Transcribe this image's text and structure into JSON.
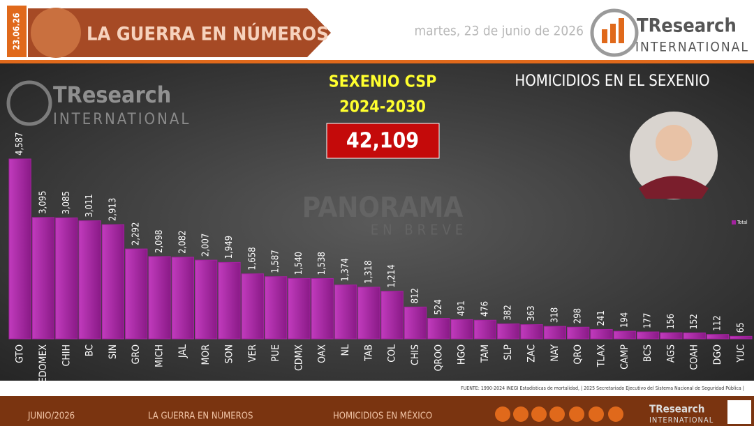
{
  "header": {
    "date_stamp": "23.06.26",
    "title": "LA GUERRA EN NÚMEROS",
    "date": "martes, 23 de junio de 2026",
    "logo_name": "TResearch",
    "logo_sub": "INTERNATIONAL"
  },
  "panel": {
    "period_title": "SEXENIO CSP",
    "period_years": "2024-2030",
    "total": "42,109",
    "heading": "HOMICIDIOS  EN  EL SEXENIO",
    "watermark_name": "PANORAMA",
    "watermark_sub": "EN BREVE"
  },
  "chart_data": {
    "type": "bar",
    "categories": [
      "GTO",
      "EDOMEX",
      "CHIH",
      "BC",
      "SIN",
      "GRO",
      "MICH",
      "JAL",
      "MOR",
      "SON",
      "VER",
      "PUE",
      "CDMX",
      "OAX",
      "NL",
      "TAB",
      "COL",
      "CHIS",
      "QROO",
      "HGO",
      "TAM",
      "SLP",
      "ZAC",
      "NAY",
      "QRO",
      "TLAX",
      "CAMP",
      "BCS",
      "AGS",
      "COAH",
      "DGO",
      "YUC"
    ],
    "series": [
      {
        "name": "Total",
        "color": "#a3229f",
        "values": [
          4587,
          3095,
          3085,
          3011,
          2913,
          2292,
          2098,
          2082,
          2007,
          1949,
          1658,
          1587,
          1540,
          1538,
          1374,
          1318,
          1214,
          812,
          524,
          491,
          476,
          382,
          363,
          318,
          298,
          241,
          194,
          177,
          156,
          152,
          112,
          65
        ],
        "value_labels": [
          "4,587",
          "3,095",
          "3,085",
          "3,011",
          "2,913",
          "2,292",
          "2,098",
          "2,082",
          "2,007",
          "1,949",
          "1,658",
          "1,587",
          "1,540",
          "1,538",
          "1,374",
          "1,318",
          "1,214",
          "812",
          "524",
          "491",
          "476",
          "382",
          "363",
          "318",
          "298",
          "241",
          "194",
          "177",
          "156",
          "152",
          "112",
          "65"
        ]
      }
    ],
    "legend": "right"
  },
  "source": "FUENTE: 1990-2024 INEGI Estadísticas de mortalidad, | 2025 Secretariado Ejecutivo del Sistema Nacional de Seguridad Pública |",
  "footer": {
    "month": "JUNIO/2026",
    "series": "LA GUERRA EN NÚMEROS",
    "topic": "HOMICIDIOS EN MÉXICO",
    "logo_name": "TResearch",
    "logo_sub": "INTERNATIONAL"
  }
}
